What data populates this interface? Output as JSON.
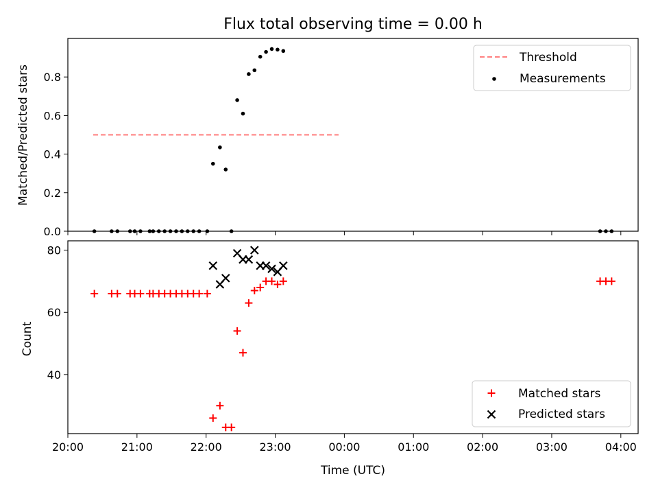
{
  "chart_data": [
    {
      "type": "scatter",
      "title": "Flux total observing time = 0.00 h",
      "ylabel": "Matched/Predicted stars",
      "xlabel": "",
      "ylim": [
        0,
        1.0
      ],
      "yticks": [
        "0.0",
        "0.2",
        "0.4",
        "0.6",
        "0.8"
      ],
      "legend_position": "upper-right",
      "threshold": {
        "name": "Threshold",
        "value": 0.5,
        "x_range": [
          "20:22",
          "23:55"
        ],
        "color": "#ff7f7f",
        "style": "dashed"
      },
      "series": [
        {
          "name": "Measurements",
          "color": "#000000",
          "marker": "dot",
          "points": [
            [
              "20:23",
              0.0
            ],
            [
              "20:38",
              0.0
            ],
            [
              "20:43",
              0.0
            ],
            [
              "20:54",
              0.0
            ],
            [
              "20:58",
              0.0
            ],
            [
              "21:03",
              0.0
            ],
            [
              "21:11",
              0.0
            ],
            [
              "21:14",
              0.0
            ],
            [
              "21:19",
              0.0
            ],
            [
              "21:24",
              0.0
            ],
            [
              "21:29",
              0.0
            ],
            [
              "21:34",
              0.0
            ],
            [
              "21:39",
              0.0
            ],
            [
              "21:44",
              0.0
            ],
            [
              "21:49",
              0.0
            ],
            [
              "21:54",
              0.0
            ],
            [
              "22:01",
              0.0
            ],
            [
              "22:06",
              0.35
            ],
            [
              "22:12",
              0.435
            ],
            [
              "22:17",
              0.32
            ],
            [
              "22:22",
              0.0
            ],
            [
              "22:27",
              0.68
            ],
            [
              "22:32",
              0.61
            ],
            [
              "22:37",
              0.815
            ],
            [
              "22:42",
              0.835
            ],
            [
              "22:47",
              0.905
            ],
            [
              "22:52",
              0.93
            ],
            [
              "22:57",
              0.945
            ],
            [
              "23:02",
              0.942
            ],
            [
              "23:07",
              0.935
            ],
            [
              "03:42",
              0.0
            ],
            [
              "03:47",
              0.0
            ],
            [
              "03:52",
              0.0
            ]
          ]
        }
      ]
    },
    {
      "type": "scatter",
      "title": "",
      "xlabel": "Time (UTC)",
      "ylabel": "Count",
      "ylim": [
        21,
        83
      ],
      "yticks": [
        "40",
        "60",
        "80"
      ],
      "xticks": [
        "20:00",
        "21:00",
        "22:00",
        "23:00",
        "00:00",
        "01:00",
        "02:00",
        "03:00",
        "04:00"
      ],
      "legend_position": "lower-right",
      "series": [
        {
          "name": "Matched stars",
          "color": "#ff0000",
          "marker": "plus",
          "points": [
            [
              "20:23",
              66
            ],
            [
              "20:38",
              66
            ],
            [
              "20:43",
              66
            ],
            [
              "20:54",
              66
            ],
            [
              "20:58",
              66
            ],
            [
              "21:03",
              66
            ],
            [
              "21:11",
              66
            ],
            [
              "21:14",
              66
            ],
            [
              "21:19",
              66
            ],
            [
              "21:24",
              66
            ],
            [
              "21:29",
              66
            ],
            [
              "21:34",
              66
            ],
            [
              "21:39",
              66
            ],
            [
              "21:44",
              66
            ],
            [
              "21:49",
              66
            ],
            [
              "21:54",
              66
            ],
            [
              "22:01",
              66
            ],
            [
              "22:06",
              26
            ],
            [
              "22:12",
              30
            ],
            [
              "22:17",
              23
            ],
            [
              "22:22",
              23
            ],
            [
              "22:27",
              54
            ],
            [
              "22:32",
              47
            ],
            [
              "22:37",
              63
            ],
            [
              "22:42",
              67
            ],
            [
              "22:47",
              68
            ],
            [
              "22:52",
              70
            ],
            [
              "22:57",
              70
            ],
            [
              "23:02",
              69
            ],
            [
              "23:07",
              70
            ],
            [
              "03:42",
              70
            ],
            [
              "03:47",
              70
            ],
            [
              "03:52",
              70
            ]
          ]
        },
        {
          "name": "Predicted stars",
          "color": "#000000",
          "marker": "x",
          "points": [
            [
              "22:06",
              75
            ],
            [
              "22:12",
              69
            ],
            [
              "22:17",
              71
            ],
            [
              "22:27",
              79
            ],
            [
              "22:32",
              77
            ],
            [
              "22:37",
              77
            ],
            [
              "22:42",
              80
            ],
            [
              "22:47",
              75
            ],
            [
              "22:52",
              75
            ],
            [
              "22:57",
              74
            ],
            [
              "23:02",
              73
            ],
            [
              "23:07",
              75
            ]
          ]
        }
      ]
    }
  ]
}
